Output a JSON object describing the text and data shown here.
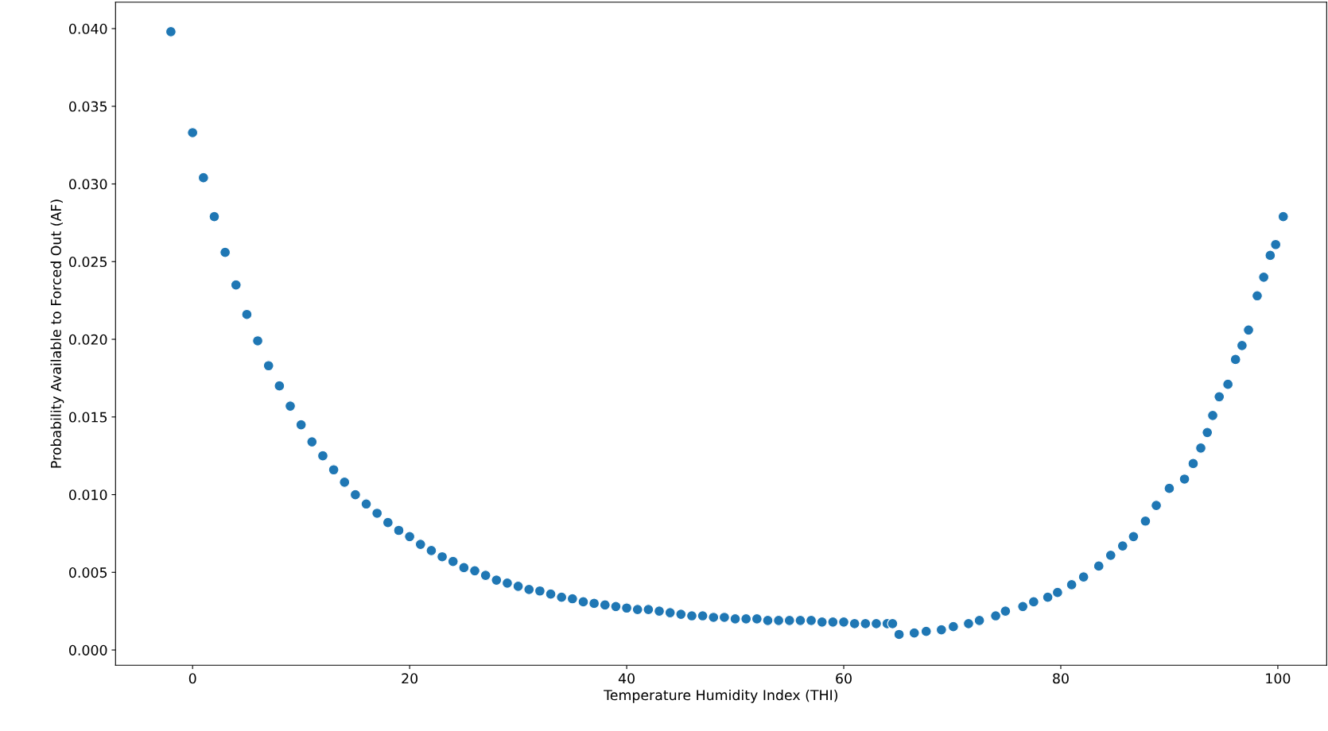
{
  "chart_data": {
    "type": "scatter",
    "xlabel": "Temperature Humidity Index (THI)",
    "ylabel": "Probability Available to Forced Out (AF)",
    "series": [
      {
        "color": "#1f77b4",
        "x": [
          -2,
          0,
          1,
          2,
          3,
          4,
          5,
          6,
          7,
          8,
          9,
          10,
          11,
          12,
          13,
          14,
          15,
          16,
          17,
          18,
          19,
          20,
          21,
          22,
          23,
          24,
          25,
          26,
          27,
          28,
          29,
          30,
          31,
          32,
          33,
          34,
          35,
          36,
          37,
          38,
          39,
          40,
          41,
          42,
          43,
          44,
          45,
          46,
          47,
          48,
          49,
          50,
          51,
          52,
          53,
          54,
          55,
          56,
          57,
          58,
          59,
          60,
          61,
          62,
          63,
          64,
          64.5,
          65.1,
          66.5,
          67.6,
          69,
          70.1,
          71.5,
          72.5,
          74,
          74.9,
          76.5,
          77.5,
          78.8,
          79.7,
          81,
          82.1,
          83.5,
          84.6,
          85.7,
          86.7,
          87.8,
          88.8,
          90,
          91.4,
          92.2,
          92.9,
          93.5,
          94,
          94.6,
          95.4,
          96.1,
          96.7,
          97.3,
          98.1,
          98.7,
          99.3,
          99.8,
          100.5
        ],
        "values": [
          0.0398,
          0.0333,
          0.0304,
          0.0279,
          0.0256,
          0.0235,
          0.0216,
          0.0199,
          0.0183,
          0.017,
          0.0157,
          0.0145,
          0.0134,
          0.0125,
          0.0116,
          0.0108,
          0.01,
          0.0094,
          0.0088,
          0.0082,
          0.0077,
          0.0073,
          0.0068,
          0.0064,
          0.006,
          0.0057,
          0.0053,
          0.0051,
          0.0048,
          0.0045,
          0.0043,
          0.0041,
          0.0039,
          0.0038,
          0.0036,
          0.0034,
          0.0033,
          0.0031,
          0.003,
          0.0029,
          0.0028,
          0.0027,
          0.0026,
          0.0026,
          0.0025,
          0.0024,
          0.0023,
          0.0022,
          0.0022,
          0.0021,
          0.0021,
          0.002,
          0.002,
          0.002,
          0.0019,
          0.0019,
          0.0019,
          0.0019,
          0.0019,
          0.0018,
          0.0018,
          0.0018,
          0.0017,
          0.0017,
          0.0017,
          0.0017,
          0.0017,
          0.001,
          0.0011,
          0.0012,
          0.0013,
          0.0015,
          0.0017,
          0.0019,
          0.0022,
          0.0025,
          0.0028,
          0.0031,
          0.0034,
          0.0037,
          0.0042,
          0.0047,
          0.0054,
          0.0061,
          0.0067,
          0.0073,
          0.0083,
          0.0093,
          0.0104,
          0.011,
          0.012,
          0.013,
          0.014,
          0.0151,
          0.0163,
          0.0171,
          0.0187,
          0.0196,
          0.0206,
          0.0228,
          0.024,
          0.0254,
          0.0261,
          0.0279
        ]
      }
    ],
    "xlim": [
      -7.1,
      104.5
    ],
    "ylim": [
      -0.00098,
      0.0417
    ],
    "xticks": [
      0,
      20,
      40,
      60,
      80,
      100
    ],
    "yticks": [
      {
        "value": 0,
        "label": "0.000"
      },
      {
        "value": 0.005,
        "label": "0.005"
      },
      {
        "value": 0.01,
        "label": "0.010"
      },
      {
        "value": 0.015,
        "label": "0.015"
      },
      {
        "value": 0.02,
        "label": "0.020"
      },
      {
        "value": 0.025,
        "label": "0.025"
      },
      {
        "value": 0.03,
        "label": "0.030"
      },
      {
        "value": 0.035,
        "label": "0.035"
      },
      {
        "value": 0.04,
        "label": "0.040"
      }
    ],
    "grid": false,
    "legend": false,
    "marker": "circle"
  }
}
